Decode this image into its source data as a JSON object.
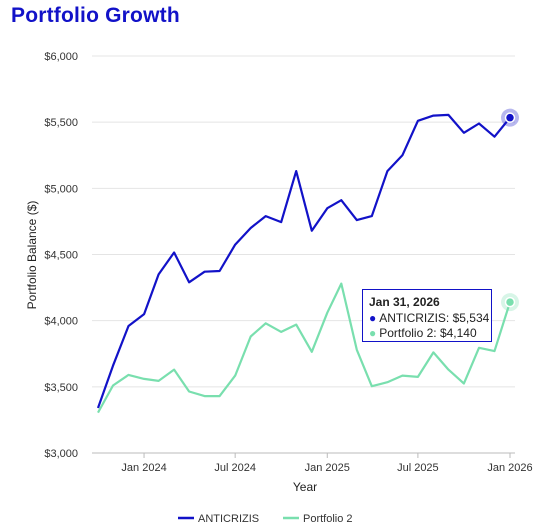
{
  "chart_data": {
    "type": "line",
    "title": "Portfolio Growth",
    "xlabel": "Year",
    "ylabel": "Portfolio Balance ($)",
    "x": [
      "2023-10-31",
      "2023-11-30",
      "2023-12-31",
      "2024-01-31",
      "2024-02-29",
      "2024-03-31",
      "2024-04-30",
      "2024-05-31",
      "2024-06-30",
      "2024-07-31",
      "2024-08-31",
      "2024-09-30",
      "2024-10-31",
      "2024-11-30",
      "2024-12-31",
      "2025-01-31",
      "2025-02-28",
      "2025-03-31",
      "2025-04-30",
      "2025-05-31",
      "2025-06-30",
      "2025-07-31",
      "2025-08-31",
      "2025-09-30",
      "2025-10-31",
      "2025-11-30",
      "2025-12-31",
      "2026-01-31"
    ],
    "x_ticks": [
      "Jan 2024",
      "Jul 2024",
      "Jan 2025",
      "Jul 2025",
      "Jan 2026"
    ],
    "x_tick_dates": [
      "2024-01-31",
      "2024-07-31",
      "2025-01-31",
      "2025-07-31",
      "2026-01-31"
    ],
    "y_ticks": [
      "$3,000",
      "$3,500",
      "$4,000",
      "$4,500",
      "$5,000",
      "$5,500",
      "$6,000"
    ],
    "y_tick_values": [
      3000,
      3500,
      4000,
      4500,
      5000,
      5500,
      6000
    ],
    "ylim": [
      3000,
      6000
    ],
    "grid": "horizontal",
    "legend_position": "bottom",
    "series": [
      {
        "name": "ANTICRIZIS",
        "color": "#1212c8",
        "values": [
          3340,
          3660,
          3960,
          4050,
          4350,
          4515,
          4290,
          4370,
          4375,
          4575,
          4700,
          4790,
          4745,
          5130,
          4680,
          4850,
          4910,
          4760,
          4790,
          5130,
          5250,
          5510,
          5550,
          5555,
          5420,
          5490,
          5390,
          5534
        ]
      },
      {
        "name": "Portfolio 2",
        "color": "#79dfae",
        "values": [
          3305,
          3510,
          3590,
          3560,
          3545,
          3630,
          3465,
          3430,
          3430,
          3585,
          3880,
          3980,
          3915,
          3970,
          3765,
          4060,
          4280,
          3780,
          3505,
          3535,
          3585,
          3575,
          3760,
          3630,
          3525,
          3795,
          3770,
          4140
        ]
      }
    ],
    "tooltip": {
      "title": "Jan 31, 2026",
      "rows": [
        {
          "series": "ANTICRIZIS",
          "text": "ANTICRIZIS: $5,534",
          "color": "#1212c8"
        },
        {
          "series": "Portfolio 2",
          "text": "Portfolio 2: $4,140",
          "color": "#79dfae"
        }
      ]
    }
  }
}
